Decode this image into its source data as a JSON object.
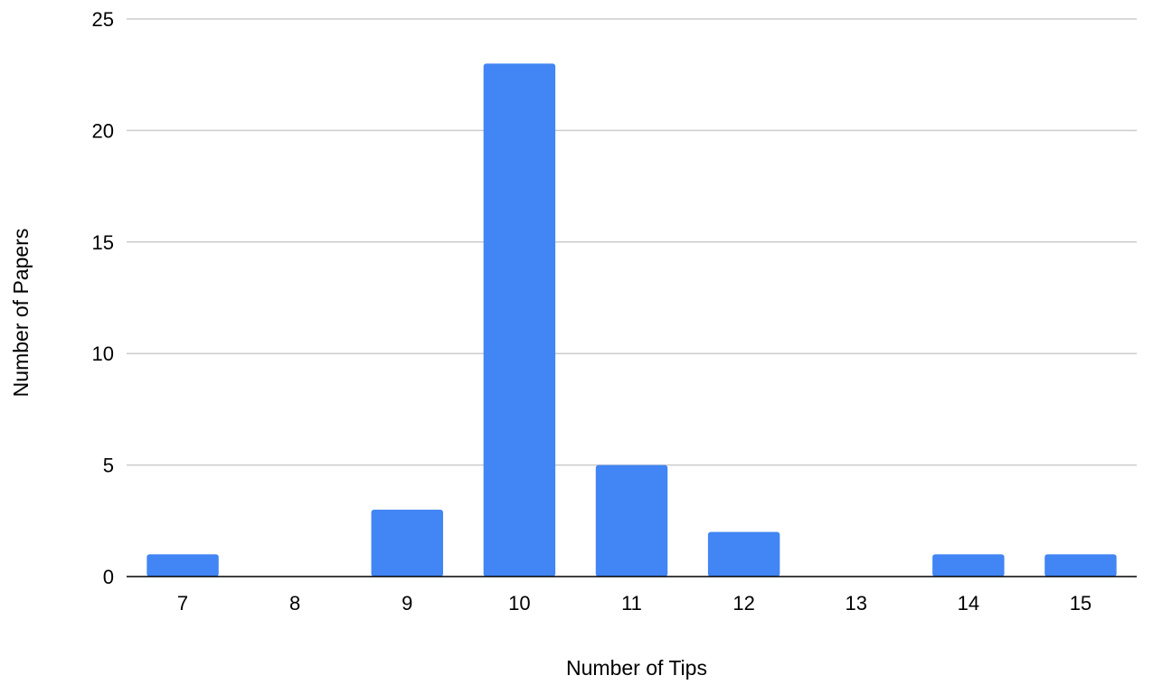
{
  "chart_data": {
    "type": "bar",
    "title": "",
    "xlabel": "Number of Tips",
    "ylabel": "Number of Papers",
    "categories": [
      "7",
      "8",
      "9",
      "10",
      "11",
      "12",
      "13",
      "14",
      "15"
    ],
    "values": [
      1,
      0,
      3,
      23,
      5,
      2,
      0,
      1,
      1
    ],
    "ylim": [
      0,
      25
    ],
    "yticks": [
      0,
      5,
      10,
      15,
      20,
      25
    ],
    "grid": true,
    "legend": "none",
    "bar_color": "#4285f4",
    "grid_color": "#cccccc"
  }
}
